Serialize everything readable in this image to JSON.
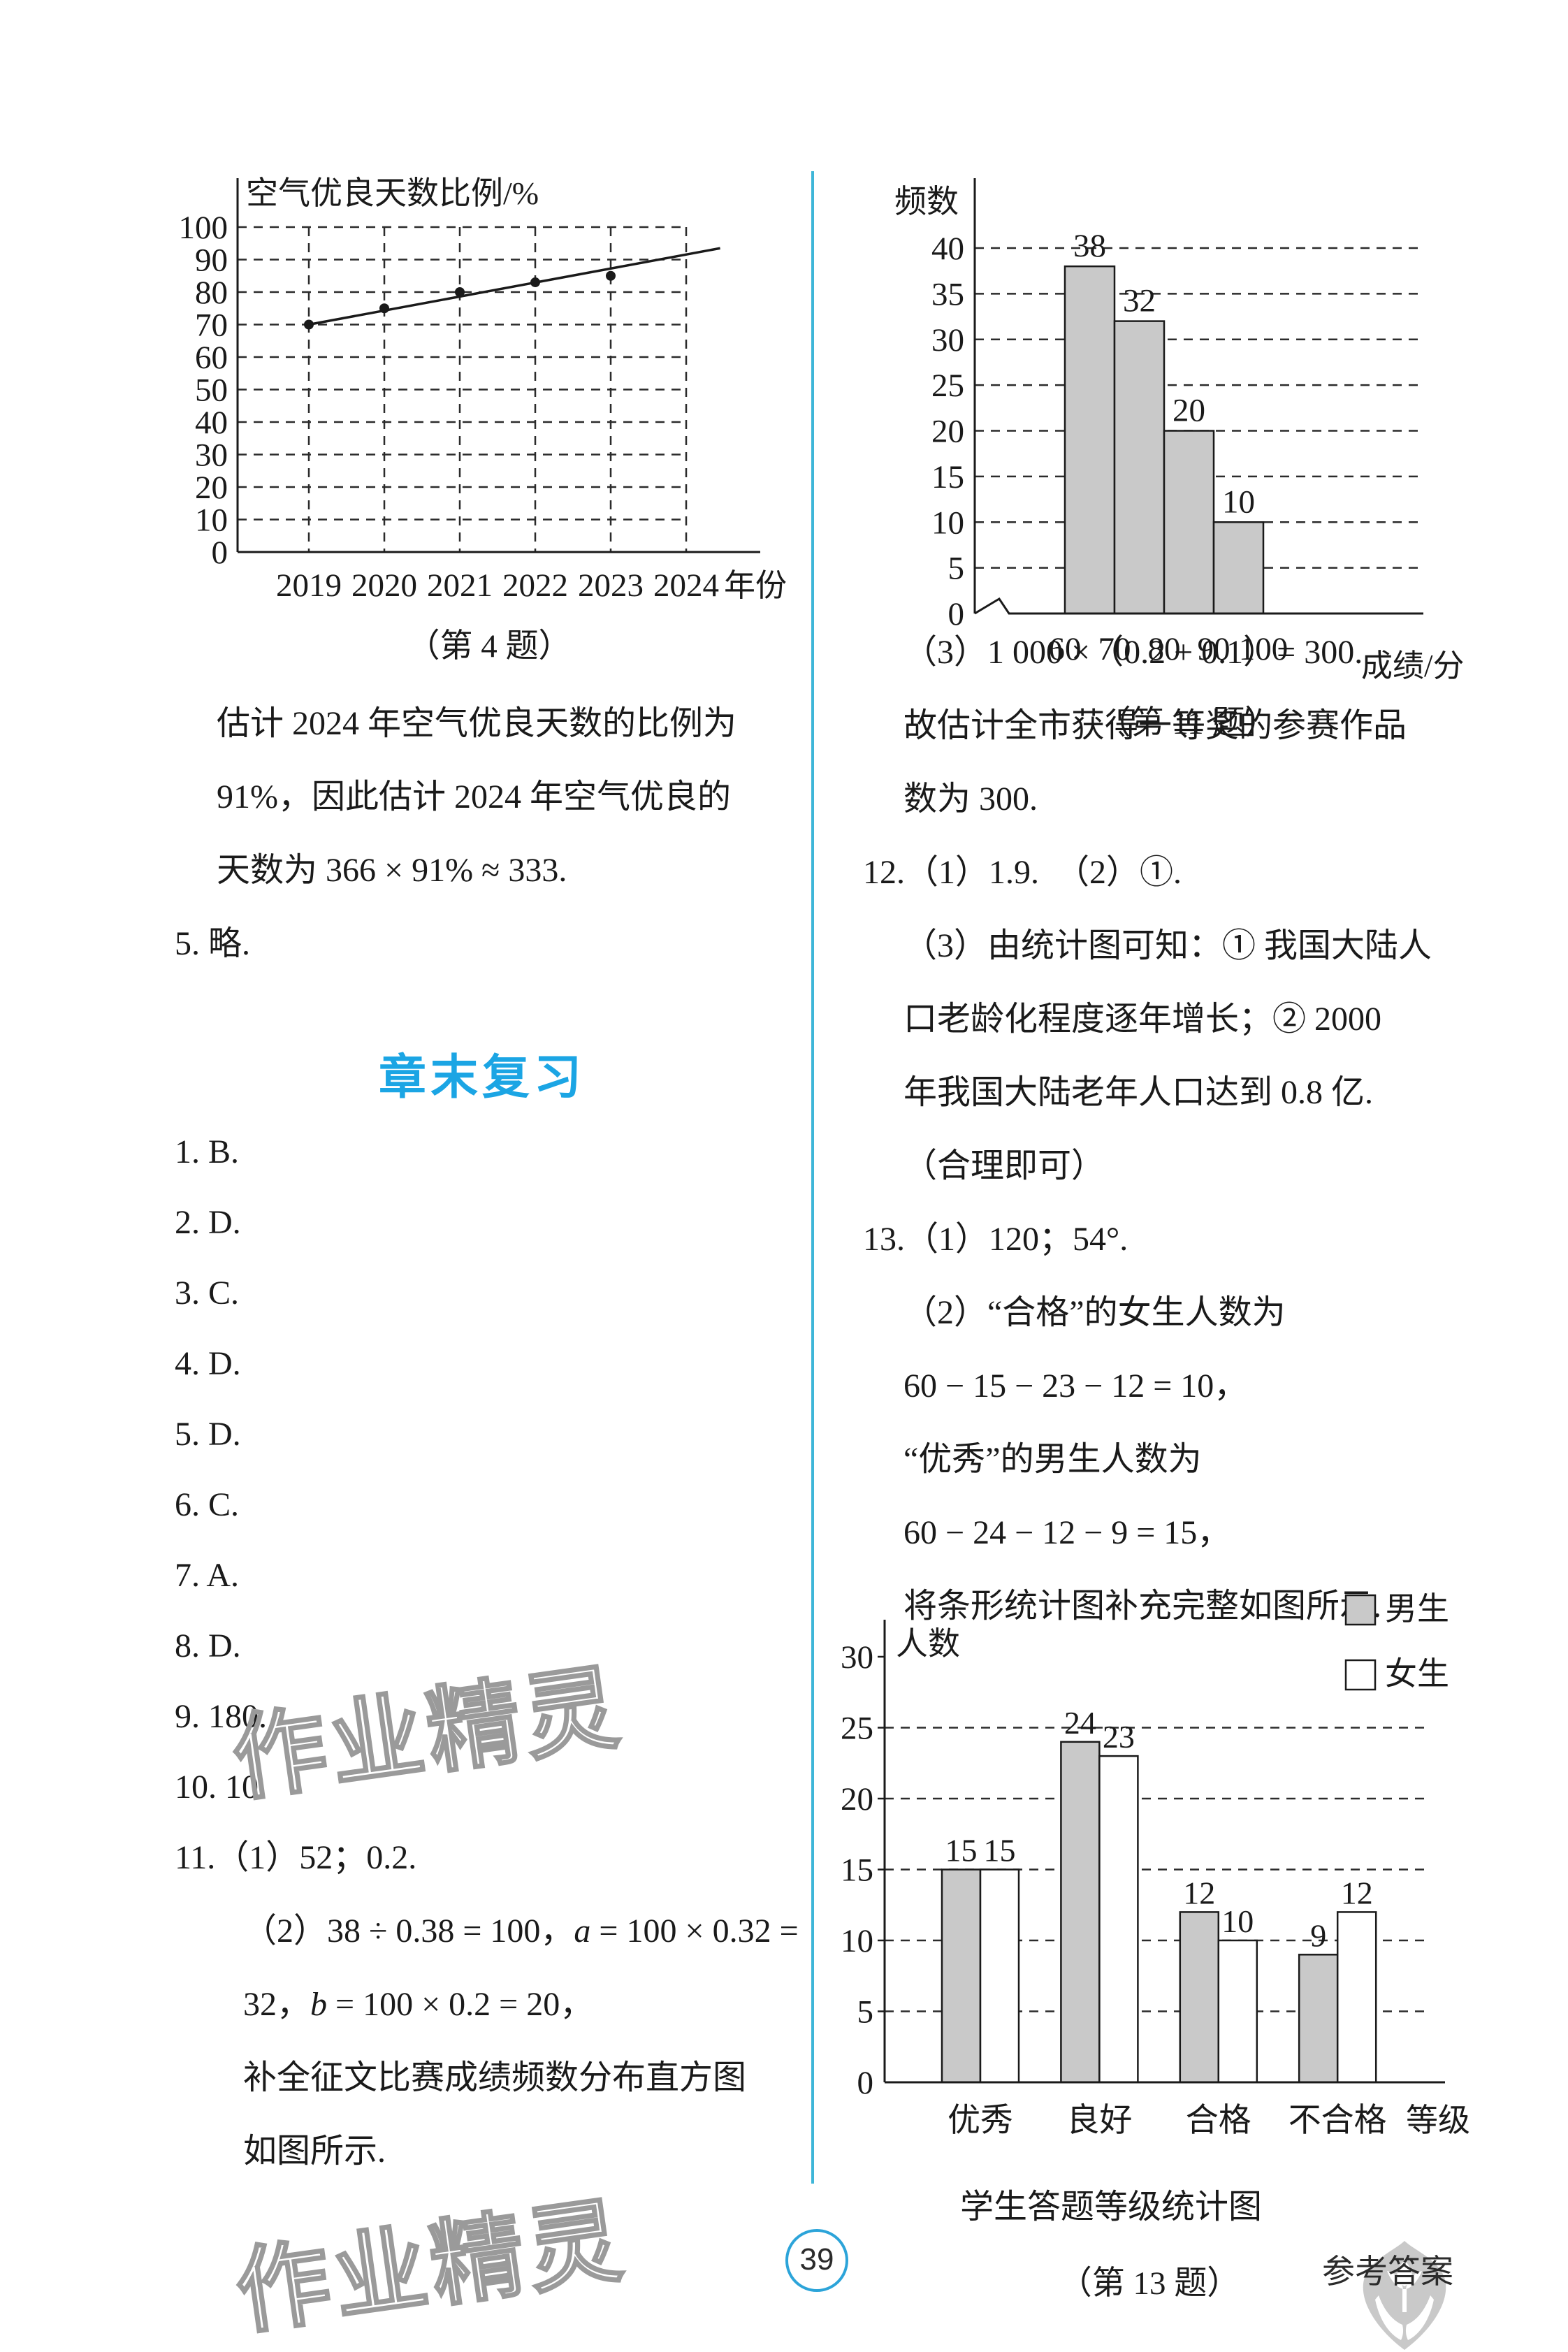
{
  "page": {
    "number": "39",
    "footer_right": "参考答案",
    "watermark": "作业精灵"
  },
  "left_column": {
    "paragraph": [
      "估计 2024 年空气优良天数的比例为",
      "91%，因此估计 2024 年空气优良的",
      "天数为 366 × 91% ≈ 333."
    ],
    "item5": "5. 略.",
    "section_title": "章末复习",
    "answers": [
      "1. B.",
      "2. D.",
      "3. C.",
      "4. D.",
      "5. D.",
      "6. C.",
      "7. A.",
      "8. D.",
      "9. 180.",
      "10. 10."
    ],
    "item11_line1": "11.（1）52；0.2.",
    "item11_line2_pre": "（2）38 ÷ 0.38 = 100，",
    "item11_line2_var": "a",
    "item11_line2_post": " = 100 × 0.32 =",
    "item11_line3_pre": "32，",
    "item11_line3_var": "b",
    "item11_line3_post": " = 100 × 0.2 = 20，",
    "item11_line4": "补全征文比赛成绩频数分布直方图",
    "item11_line5": "如图所示."
  },
  "right_column": {
    "lines": [
      "（3）1 000 ×（0.2 + 0.1）= 300.",
      "故估计全市获得一等奖的参赛作品",
      "数为 300.",
      "12.（1）1.9.　（2）①.",
      "（3）由统计图可知：① 我国大陆人",
      "口老龄化程度逐年增长；② 2000",
      "年我国大陆老年人口达到 0.8 亿.",
      "（合理即可）",
      "13.（1）120；54°.",
      "（2）“合格”的女生人数为",
      "60 − 15 − 23 − 12 = 10，",
      "“优秀”的男生人数为",
      "60 − 24 − 12 − 9 = 15，",
      "将条形统计图补充完整如图所示."
    ]
  },
  "chart_data": [
    {
      "type": "line",
      "title": "空气优良天数比例/%",
      "xlabel": "年份",
      "caption": "（第 4 题）",
      "x": [
        2019,
        2020,
        2021,
        2022,
        2023,
        2024
      ],
      "points": {
        "x": [
          2019,
          2020,
          2021,
          2022,
          2023
        ],
        "y": [
          70,
          75,
          80,
          83,
          85
        ]
      },
      "trend_line": {
        "x1": 2019,
        "y1": 70,
        "x2": 2024.45,
        "y2": 93.5
      },
      "ylim": [
        0,
        100
      ],
      "ytick_step": 10,
      "grid": "dashed"
    },
    {
      "type": "histogram",
      "ylabel": "频数",
      "xlabel": "成绩/分",
      "caption": "（第 11 题）",
      "bin_edges": [
        60,
        70,
        80,
        90,
        100
      ],
      "values": [
        38,
        32,
        20,
        10
      ],
      "ylim": [
        0,
        40
      ],
      "ytick_step": 5,
      "bar_color": "#c9c9c9",
      "axis_break": true
    },
    {
      "type": "grouped_bar",
      "ylabel": "人数",
      "xlabel": "等级",
      "title": "学生答题等级统计图",
      "caption": "（第 13 题）",
      "categories": [
        "优秀",
        "良好",
        "合格",
        "不合格"
      ],
      "series": [
        {
          "name": "男生",
          "values": [
            15,
            24,
            12,
            9
          ],
          "color": "#c9c9c9"
        },
        {
          "name": "女生",
          "values": [
            15,
            23,
            10,
            12
          ],
          "color": "#ffffff"
        }
      ],
      "ylim": [
        0,
        30
      ],
      "ytick_step": 5,
      "legend_position": "top-right",
      "grid": "dashed"
    }
  ],
  "colors": {
    "accent_blue": "#1ba5e4",
    "divider_teal": "#3fb6d8",
    "bar_gray": "#c9c9c9",
    "watermark_gray": "#9a9a9a",
    "logo_gray": "#c9c9c9"
  }
}
